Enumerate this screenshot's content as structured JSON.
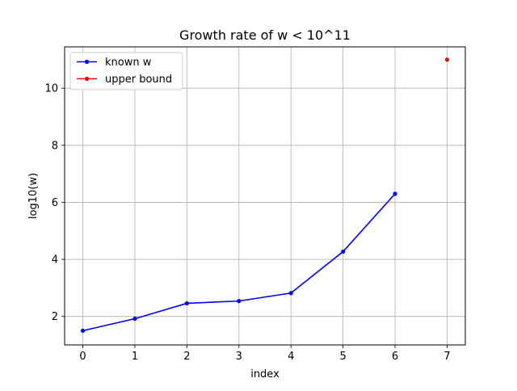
{
  "chart_data": {
    "type": "line",
    "title": "Growth rate of w < 10^11",
    "xlabel": "index",
    "ylabel": "log10(w)",
    "x_ticks": [
      0,
      1,
      2,
      3,
      4,
      5,
      6,
      7
    ],
    "y_ticks": [
      2,
      4,
      6,
      8,
      10
    ],
    "xlim": [
      -0.35,
      7.35
    ],
    "ylim": [
      1.0,
      11.45
    ],
    "grid": true,
    "legend_position": "top-left",
    "series": [
      {
        "name": "known w",
        "color": "#0000ff",
        "points": [
          {
            "x": 0,
            "y": 1.5
          },
          {
            "x": 1,
            "y": 1.92
          },
          {
            "x": 2,
            "y": 2.46
          },
          {
            "x": 3,
            "y": 2.54
          },
          {
            "x": 4,
            "y": 2.82
          },
          {
            "x": 5,
            "y": 4.27
          },
          {
            "x": 6,
            "y": 6.3
          }
        ]
      },
      {
        "name": "upper bound",
        "color": "#ff0000",
        "points": [
          {
            "x": 7,
            "y": 11.0
          }
        ]
      }
    ]
  }
}
